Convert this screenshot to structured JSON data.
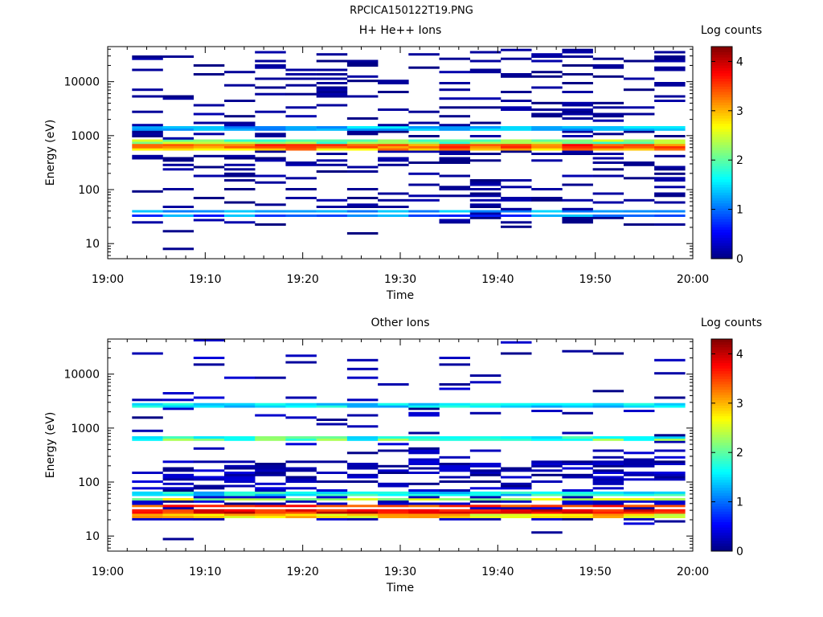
{
  "page": {
    "file_title": "RPCICA150122T19.PNG"
  },
  "chart_data": [
    {
      "type": "heatmap",
      "title": "H+ He++ Ions",
      "xlabel": "Time",
      "ylabel": "Energy (eV)",
      "colorbar_label": "Log counts",
      "x_ticks": [
        "19:00",
        "19:10",
        "19:20",
        "19:30",
        "19:40",
        "19:50",
        "20:00"
      ],
      "y_ticks": [
        "10",
        "100",
        "1000",
        "10000"
      ],
      "colorbar_ticks": [
        "0",
        "1",
        "2",
        "3",
        "4"
      ],
      "x_range_minutes": [
        0,
        60
      ],
      "y_range_log10_eV": [
        0.72,
        4.65
      ],
      "colorbar_range": [
        0,
        4.3
      ],
      "grid": false,
      "time_bins": 18,
      "bin_start_min": 2.5,
      "bin_width_min": 3.15,
      "bands_log10_eV": [
        {
          "center": 2.82,
          "level_range": [
            3.0,
            3.8
          ]
        },
        {
          "center": 2.75,
          "level_range": [
            2.5,
            3.4
          ]
        },
        {
          "center": 2.89,
          "level_range": [
            1.8,
            2.6
          ]
        },
        {
          "center": 3.15,
          "level_range": [
            1.0,
            1.6
          ]
        },
        {
          "center": 1.52,
          "level_range": [
            0.6,
            1.4
          ]
        },
        {
          "center": 1.6,
          "level_range": [
            1.0,
            1.5
          ]
        }
      ],
      "sparse_counts_level": [
        0.0,
        0.2
      ]
    },
    {
      "type": "heatmap",
      "title": "Other Ions",
      "xlabel": "Time",
      "ylabel": "Energy (eV)",
      "colorbar_label": "Log counts",
      "x_ticks": [
        "19:00",
        "19:10",
        "19:20",
        "19:30",
        "19:40",
        "19:50",
        "20:00"
      ],
      "y_ticks": [
        "10",
        "100",
        "1000",
        "10000"
      ],
      "colorbar_ticks": [
        "0",
        "1",
        "2",
        "3",
        "4"
      ],
      "x_range_minutes": [
        0,
        60
      ],
      "y_range_log10_eV": [
        0.72,
        4.65
      ],
      "colorbar_range": [
        0,
        4.3
      ],
      "grid": false,
      "time_bins": 18,
      "bin_start_min": 2.5,
      "bin_width_min": 3.15,
      "bands_log10_eV": [
        {
          "center": 1.46,
          "level_range": [
            3.4,
            4.1
          ]
        },
        {
          "center": 1.56,
          "level_range": [
            3.2,
            3.8
          ]
        },
        {
          "center": 1.38,
          "level_range": [
            2.4,
            3.2
          ]
        },
        {
          "center": 1.68,
          "level_range": [
            2.0,
            2.8
          ]
        },
        {
          "center": 1.8,
          "level_range": [
            1.2,
            2.0
          ]
        },
        {
          "center": 2.8,
          "level_range": [
            1.4,
            2.4
          ]
        },
        {
          "center": 3.43,
          "level_range": [
            1.2,
            1.8
          ]
        }
      ],
      "sparse_counts_level": [
        0.0,
        0.4
      ]
    }
  ]
}
